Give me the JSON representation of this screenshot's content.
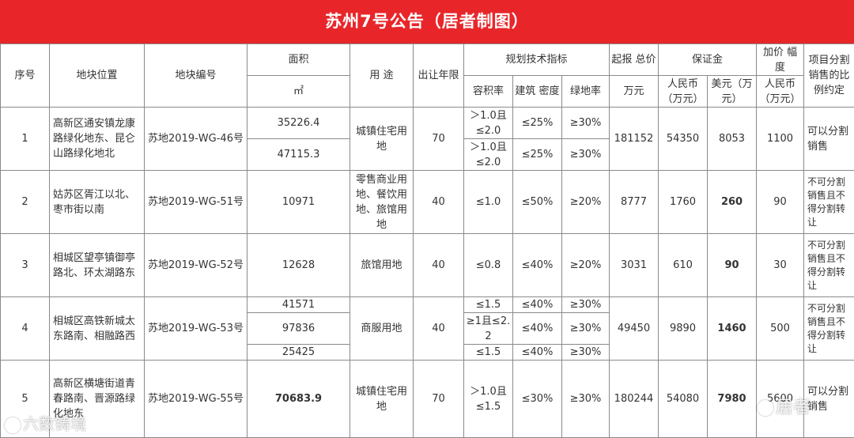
{
  "title": "苏州7号公告（居者制图）",
  "headers": {
    "seq": "序号",
    "location": "地块位置",
    "plot_no": "地块编号",
    "area": "面积",
    "area_unit": "㎡",
    "usage": "用 途",
    "term": "出让年限",
    "planning": "规划技术指标",
    "far": "容积率",
    "density": "建筑 密度",
    "green": "绿地率",
    "start_price": "起报 总价",
    "start_price_unit": "万元",
    "deposit": "保证金",
    "deposit_rmb": "人民币（万元）",
    "deposit_usd": "美元（万元）",
    "increment": "加价 幅度",
    "increment_unit": "人民币（万元）",
    "divisible": "项目分割销售的比例约定"
  },
  "rows": [
    {
      "seq": "1",
      "location": "高新区通安镇龙康路绿化地东、昆仑山路绿化地北",
      "plot_no": "苏地2019-WG-46号",
      "usage": "城镇住宅用地",
      "term": "70",
      "start_price": "181152",
      "deposit_rmb": "54350",
      "deposit_usd": "8053",
      "increment": "1100",
      "divisible": "可以分割销售",
      "subs": [
        {
          "area": "35226.4",
          "far": "＞1.0且≤2.0",
          "density": "≤25%",
          "green": "≥30%"
        },
        {
          "area": "47115.3",
          "far": "＞1.0且≤2.0",
          "density": "≤25%",
          "green": "≥30%"
        }
      ]
    },
    {
      "seq": "2",
      "location": "姑苏区胥江以北、枣市街以南",
      "plot_no": "苏地2019-WG-51号",
      "area": "10971",
      "usage": "零售商业用地、餐饮用地、旅馆用地",
      "term": "40",
      "far": "≤1.0",
      "density": "≤50%",
      "green": "≥20%",
      "start_price": "8777",
      "deposit_rmb": "1760",
      "deposit_usd": "260",
      "increment": "90",
      "divisible": "不可分割销售且不得分割转让"
    },
    {
      "seq": "3",
      "location": "相城区望亭镇御亭路北、环太湖路东",
      "plot_no": "苏地2019-WG-52号",
      "area": "12628",
      "usage": "旅馆用地",
      "term": "40",
      "far": "≤0.8",
      "density": "≤40%",
      "green": "≥20%",
      "start_price": "3031",
      "deposit_rmb": "610",
      "deposit_usd": "90",
      "increment": "30",
      "divisible": "不可分割销售且不得分割转让"
    },
    {
      "seq": "4",
      "location": "相城区高铁新城太东路南、相融路西",
      "plot_no": "苏地2019-WG-53号",
      "usage": "商服用地",
      "term": "40",
      "start_price": "49450",
      "deposit_rmb": "9890",
      "deposit_usd": "1460",
      "increment": "500",
      "divisible": "不可分割销售且不得分割转让",
      "subs": [
        {
          "area": "41571",
          "far": "≤1.5",
          "density": "≤40%",
          "green": "≥30%"
        },
        {
          "area": "97836",
          "far": "≥1且≤2.2",
          "density": "≤40%",
          "green": "≥30%"
        },
        {
          "area": "25425",
          "far": "≤1.5",
          "density": "≤40%",
          "green": "≥30%"
        }
      ]
    },
    {
      "seq": "5",
      "location": "高新区横塘街道青春路南、晋源路绿化地东",
      "plot_no": "苏地2019-WG-55号",
      "area": "70683.9",
      "usage": "城镇住宅用地",
      "term": "70",
      "far": "＞1.0且≤1.5",
      "density": "≤30%",
      "green": "≥30%",
      "start_price": "180244",
      "deposit_rmb": "54080",
      "deposit_usd": "7980",
      "increment": "5600",
      "divisible": "可以分割销售"
    }
  ],
  "watermarks": {
    "left": "六数铸境",
    "right": "居者"
  }
}
